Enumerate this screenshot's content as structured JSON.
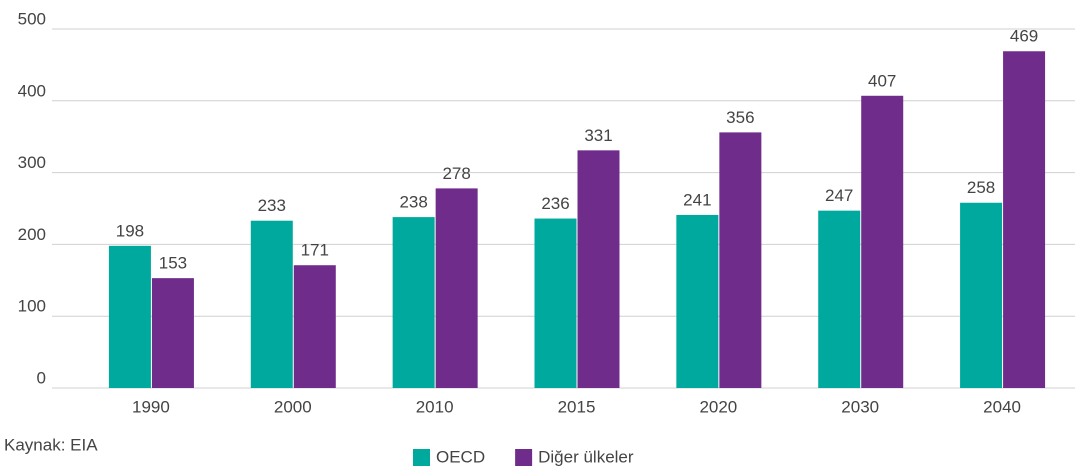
{
  "chart_data": {
    "type": "bar",
    "categories": [
      "1990",
      "2000",
      "2010",
      "2015",
      "2020",
      "2030",
      "2040"
    ],
    "series": [
      {
        "name": "OECD",
        "color": "#00a99d",
        "values": [
          198,
          233,
          238,
          236,
          241,
          247,
          258
        ]
      },
      {
        "name": "Diğer ülkeler",
        "color": "#6f2c8a",
        "values": [
          153,
          171,
          278,
          331,
          356,
          407,
          469
        ]
      }
    ],
    "ylim": [
      0,
      500
    ],
    "yticks": [
      0,
      100,
      200,
      300,
      400,
      500
    ],
    "grid": true,
    "source": "Kaynak: EIA",
    "legend": "bottom"
  }
}
